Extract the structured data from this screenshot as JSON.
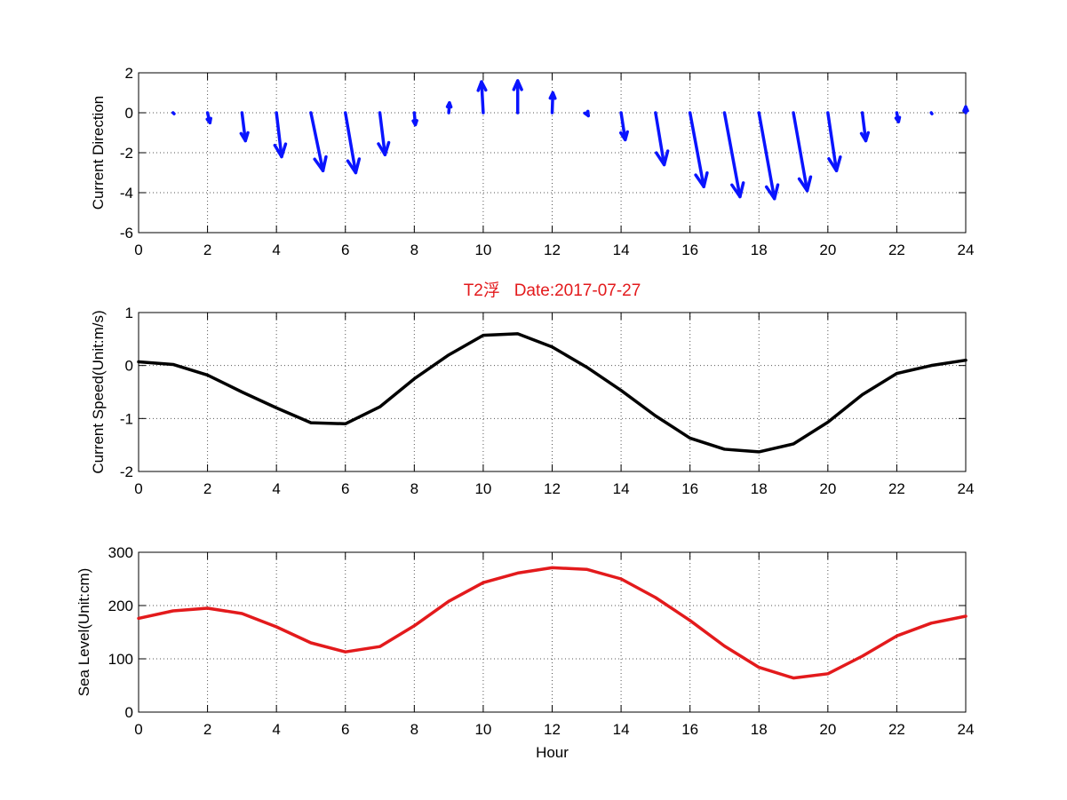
{
  "chart_data": [
    {
      "type": "quiver",
      "ylabel": "Current Direction",
      "xlim": [
        0,
        24
      ],
      "ylim": [
        -6,
        2
      ],
      "xticks": [
        0,
        2,
        4,
        6,
        8,
        10,
        12,
        14,
        16,
        18,
        20,
        22,
        24
      ],
      "yticks": [
        -6,
        -4,
        -2,
        0,
        2
      ],
      "grid": true,
      "color": "#0a14ff",
      "x": [
        1,
        2,
        3,
        4,
        5,
        6,
        7,
        8,
        9,
        10,
        11,
        12,
        13,
        14,
        15,
        16,
        17,
        18,
        19,
        20,
        21,
        22,
        23,
        24
      ],
      "u": [
        0.03,
        0.07,
        0.1,
        0.15,
        0.35,
        0.3,
        0.15,
        0.03,
        0.02,
        -0.05,
        0.0,
        0.02,
        0.05,
        0.12,
        0.25,
        0.4,
        0.45,
        0.45,
        0.4,
        0.25,
        0.1,
        0.05,
        0.02,
        0.0
      ],
      "v": [
        -0.05,
        -0.5,
        -1.4,
        -2.2,
        -2.9,
        -3.0,
        -2.1,
        -0.6,
        0.5,
        1.55,
        1.6,
        1.0,
        -0.15,
        -1.35,
        -2.6,
        -3.7,
        -4.2,
        -4.3,
        -3.9,
        -2.9,
        -1.4,
        -0.45,
        -0.05,
        0.3
      ]
    },
    {
      "type": "line",
      "title": "T2浮   Date:2017-07-27",
      "ylabel": "Current Speed(Unit:m/s)",
      "xlim": [
        0,
        24
      ],
      "ylim": [
        -2,
        1
      ],
      "xticks": [
        0,
        2,
        4,
        6,
        8,
        10,
        12,
        14,
        16,
        18,
        20,
        22,
        24
      ],
      "yticks": [
        -2,
        -1,
        0,
        1
      ],
      "grid": true,
      "color": "#000000",
      "x": [
        0,
        1,
        2,
        3,
        4,
        5,
        6,
        7,
        8,
        9,
        10,
        11,
        12,
        13,
        14,
        15,
        16,
        17,
        18,
        19,
        20,
        21,
        22,
        23,
        24
      ],
      "values": [
        0.07,
        0.02,
        -0.18,
        -0.5,
        -0.8,
        -1.08,
        -1.1,
        -0.78,
        -0.25,
        0.2,
        0.57,
        0.6,
        0.35,
        -0.03,
        -0.47,
        -0.95,
        -1.37,
        -1.58,
        -1.63,
        -1.48,
        -1.07,
        -0.55,
        -0.15,
        0.0,
        0.1
      ]
    },
    {
      "type": "line",
      "xlabel": "Hour",
      "ylabel": "Sea Level(Unit:cm)",
      "xlim": [
        0,
        24
      ],
      "ylim": [
        0,
        300
      ],
      "xticks": [
        0,
        2,
        4,
        6,
        8,
        10,
        12,
        14,
        16,
        18,
        20,
        22,
        24
      ],
      "yticks": [
        0,
        100,
        200,
        300
      ],
      "grid": true,
      "color": "#e31a1c",
      "x": [
        0,
        1,
        2,
        3,
        4,
        5,
        6,
        7,
        8,
        9,
        10,
        11,
        12,
        13,
        14,
        15,
        16,
        17,
        18,
        19,
        20,
        21,
        22,
        23,
        24
      ],
      "values": [
        176,
        190,
        195,
        185,
        160,
        130,
        113,
        123,
        162,
        208,
        243,
        261,
        271,
        268,
        250,
        215,
        172,
        124,
        84,
        64,
        72,
        105,
        143,
        167,
        180
      ]
    }
  ]
}
